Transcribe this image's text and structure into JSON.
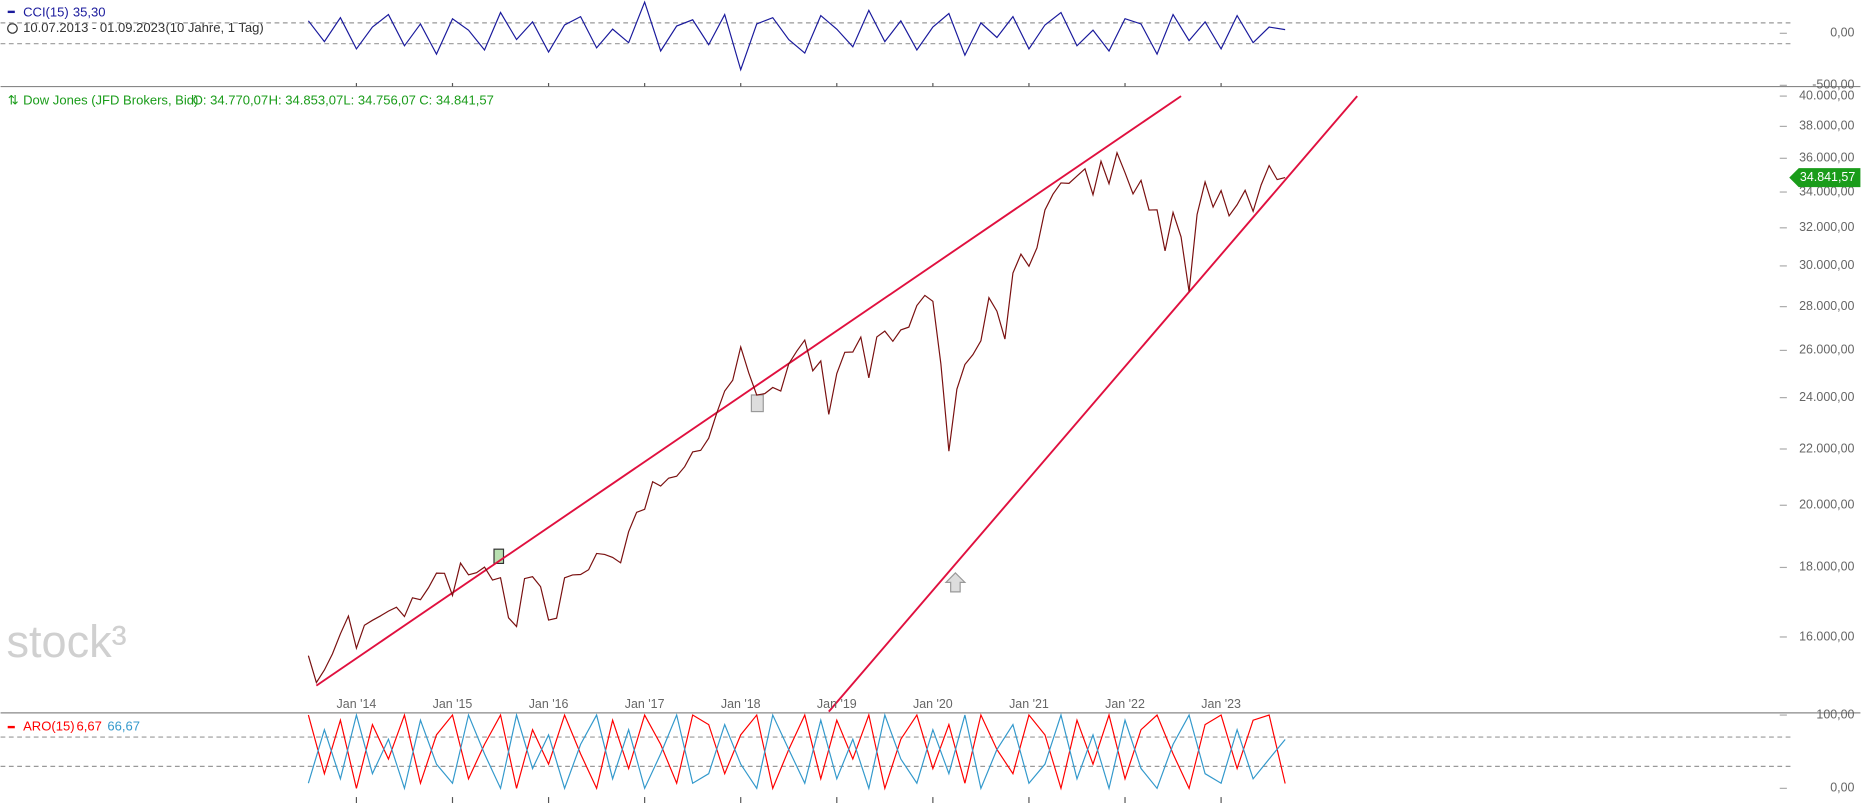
{
  "header": {
    "range": "10.07.2013 - 01.09.2023",
    "period": "(10 Jahre, 1 Tag)"
  },
  "watermark": "stock³",
  "chart_data": [
    {
      "type": "line",
      "title": "CCI(15)",
      "x": [
        "2013-07",
        "2013-09",
        "2013-11",
        "2014-01",
        "2014-03",
        "2014-05",
        "2014-07",
        "2014-09",
        "2014-11",
        "2015-01",
        "2015-03",
        "2015-05",
        "2015-07",
        "2015-09",
        "2015-11",
        "2016-01",
        "2016-03",
        "2016-05",
        "2016-07",
        "2016-09",
        "2016-11",
        "2017-01",
        "2017-03",
        "2017-05",
        "2017-07",
        "2017-09",
        "2017-11",
        "2018-01",
        "2018-03",
        "2018-05",
        "2018-07",
        "2018-09",
        "2018-11",
        "2019-01",
        "2019-03",
        "2019-05",
        "2019-07",
        "2019-09",
        "2019-11",
        "2020-01",
        "2020-03",
        "2020-05",
        "2020-07",
        "2020-09",
        "2020-11",
        "2021-01",
        "2021-03",
        "2021-05",
        "2021-07",
        "2021-09",
        "2021-11",
        "2022-01",
        "2022-03",
        "2022-05",
        "2022-07",
        "2022-09",
        "2022-11",
        "2023-01",
        "2023-03",
        "2023-05",
        "2023-07",
        "2023-09"
      ],
      "series": [
        {
          "color": "#1a1a9c",
          "last_label": "35,30",
          "values": [
            120,
            -80,
            150,
            -150,
            60,
            180,
            -120,
            90,
            -200,
            140,
            30,
            -160,
            200,
            -60,
            110,
            -180,
            80,
            160,
            -140,
            40,
            -90,
            300,
            -170,
            70,
            130,
            -110,
            180,
            -350,
            90,
            150,
            -60,
            -190,
            170,
            40,
            -130,
            220,
            -80,
            120,
            -160,
            60,
            190,
            -210,
            100,
            -40,
            160,
            -150,
            80,
            200,
            -120,
            30,
            -170,
            140,
            90,
            -200,
            180,
            -70,
            110,
            -150,
            170,
            -90,
            60,
            35.3
          ]
        }
      ],
      "ylim": [
        -512,
        320
      ],
      "yticks": [
        {
          "value": 0,
          "label": "0,00"
        },
        {
          "value": -500,
          "label": "-500,00"
        }
      ],
      "levels": [
        100,
        -100
      ]
    },
    {
      "type": "line",
      "title": "Dow Jones (JFD Brokers, Bid)",
      "ohlc_labels": [
        "O: 34.770,07",
        "H: 34.853,07",
        "L: 34.756,07",
        "C: 34.841,57"
      ],
      "log_scale": true,
      "x": [
        "2013-07",
        "2013-08",
        "2013-09",
        "2013-10",
        "2013-11",
        "2013-12",
        "2014-01",
        "2014-02",
        "2014-03",
        "2014-04",
        "2014-05",
        "2014-06",
        "2014-07",
        "2014-08",
        "2014-09",
        "2014-10",
        "2014-11",
        "2014-12",
        "2015-01",
        "2015-02",
        "2015-03",
        "2015-04",
        "2015-05",
        "2015-06",
        "2015-07",
        "2015-08",
        "2015-09",
        "2015-10",
        "2015-11",
        "2015-12",
        "2016-01",
        "2016-02",
        "2016-03",
        "2016-04",
        "2016-05",
        "2016-06",
        "2016-07",
        "2016-08",
        "2016-09",
        "2016-10",
        "2016-11",
        "2016-12",
        "2017-01",
        "2017-02",
        "2017-03",
        "2017-04",
        "2017-05",
        "2017-06",
        "2017-07",
        "2017-08",
        "2017-09",
        "2017-10",
        "2017-11",
        "2017-12",
        "2018-01",
        "2018-02",
        "2018-03",
        "2018-04",
        "2018-05",
        "2018-06",
        "2018-07",
        "2018-08",
        "2018-09",
        "2018-10",
        "2018-11",
        "2018-12",
        "2019-01",
        "2019-02",
        "2019-03",
        "2019-04",
        "2019-05",
        "2019-06",
        "2019-07",
        "2019-08",
        "2019-09",
        "2019-10",
        "2019-11",
        "2019-12",
        "2020-01",
        "2020-02",
        "2020-03",
        "2020-04",
        "2020-05",
        "2020-06",
        "2020-07",
        "2020-08",
        "2020-09",
        "2020-10",
        "2020-11",
        "2020-12",
        "2021-01",
        "2021-02",
        "2021-03",
        "2021-04",
        "2021-05",
        "2021-06",
        "2021-07",
        "2021-08",
        "2021-09",
        "2021-10",
        "2021-11",
        "2021-12",
        "2022-01",
        "2022-02",
        "2022-03",
        "2022-04",
        "2022-05",
        "2022-06",
        "2022-07",
        "2022-08",
        "2022-09",
        "2022-10",
        "2022-11",
        "2022-12",
        "2023-01",
        "2023-02",
        "2023-03",
        "2023-04",
        "2023-05",
        "2023-06",
        "2023-07",
        "2023-08",
        "2023-09"
      ],
      "color": "#7a1010",
      "values": [
        15500,
        14810,
        15130,
        15545,
        16086,
        16577,
        15699,
        16322,
        16458,
        16581,
        16717,
        16827,
        16563,
        17098,
        17043,
        17391,
        17828,
        17823,
        17165,
        18133,
        17776,
        17841,
        18011,
        17620,
        17690,
        16528,
        16285,
        17664,
        17720,
        17425,
        16466,
        16517,
        17685,
        17774,
        17787,
        17930,
        18432,
        18401,
        18308,
        18142,
        19124,
        19763,
        19864,
        20812,
        20663,
        20941,
        21009,
        21350,
        21891,
        21948,
        22405,
        23377,
        24272,
        24719,
        26149,
        25029,
        24103,
        24163,
        24416,
        24271,
        25415,
        25965,
        26458,
        25116,
        25538,
        23327,
        24999,
        25916,
        25929,
        26593,
        24815,
        26600,
        26864,
        26403,
        26917,
        27046,
        28051,
        28538,
        28256,
        25409,
        21917,
        24346,
        25383,
        25813,
        26428,
        28430,
        27782,
        26502,
        29639,
        30606,
        29983,
        30932,
        32982,
        33875,
        34529,
        34503,
        34935,
        35361,
        33844,
        35820,
        34484,
        36338,
        35132,
        33893,
        34678,
        32977,
        32990,
        30775,
        32845,
        31510,
        28726,
        32733,
        34590,
        33147,
        34086,
        32657,
        33274,
        34098,
        32908,
        34408,
        35560,
        34722,
        34842
      ],
      "ylim": [
        14070,
        40650
      ],
      "yticks": [
        {
          "value": 16000,
          "label": "16.000,00"
        },
        {
          "value": 18000,
          "label": "18.000,00"
        },
        {
          "value": 20000,
          "label": "20.000,00"
        },
        {
          "value": 22000,
          "label": "22.000,00"
        },
        {
          "value": 24000,
          "label": "24.000,00"
        },
        {
          "value": 26000,
          "label": "26.000,00"
        },
        {
          "value": 28000,
          "label": "28.000,00"
        },
        {
          "value": 30000,
          "label": "30.000,00"
        },
        {
          "value": 32000,
          "label": "32.000,00"
        },
        {
          "value": 34000,
          "label": "34.000,00"
        },
        {
          "value": 36000,
          "label": "36.000,00"
        },
        {
          "value": 38000,
          "label": "38.000,00"
        },
        {
          "value": 40000,
          "label": "40.000,00"
        }
      ],
      "xticks": [
        {
          "value": "2014-01",
          "label": "Jan '14"
        },
        {
          "value": "2015-01",
          "label": "Jan '15"
        },
        {
          "value": "2016-01",
          "label": "Jan '16"
        },
        {
          "value": "2017-01",
          "label": "Jan '17"
        },
        {
          "value": "2018-01",
          "label": "Jan '18"
        },
        {
          "value": "2019-01",
          "label": "Jan '19"
        },
        {
          "value": "2020-01",
          "label": "Jan '20"
        },
        {
          "value": "2021-01",
          "label": "Jan '21"
        },
        {
          "value": "2022-01",
          "label": "Jan '22"
        },
        {
          "value": "2023-01",
          "label": "Jan '23"
        }
      ],
      "trendlines": [
        {
          "color": "#e0103f",
          "x": [
            "2013-08",
            "2022-08"
          ],
          "values": [
            14735,
            40000
          ]
        },
        {
          "color": "#e0103f",
          "x": [
            "2018-12",
            "2024-06"
          ],
          "values": [
            14100,
            40000
          ]
        }
      ],
      "price_tag": {
        "value": 34841.57,
        "label": "34.841,57"
      }
    },
    {
      "type": "line",
      "title": "ARO(15)",
      "x": [
        "2013-07",
        "2013-09",
        "2013-11",
        "2014-01",
        "2014-03",
        "2014-05",
        "2014-07",
        "2014-09",
        "2014-11",
        "2015-01",
        "2015-03",
        "2015-05",
        "2015-07",
        "2015-09",
        "2015-11",
        "2016-01",
        "2016-03",
        "2016-05",
        "2016-07",
        "2016-09",
        "2016-11",
        "2017-01",
        "2017-03",
        "2017-05",
        "2017-07",
        "2017-09",
        "2017-11",
        "2018-01",
        "2018-03",
        "2018-05",
        "2018-07",
        "2018-09",
        "2018-11",
        "2019-01",
        "2019-03",
        "2019-05",
        "2019-07",
        "2019-09",
        "2019-11",
        "2020-01",
        "2020-03",
        "2020-05",
        "2020-07",
        "2020-09",
        "2020-11",
        "2021-01",
        "2021-03",
        "2021-05",
        "2021-07",
        "2021-09",
        "2021-11",
        "2022-01",
        "2022-03",
        "2022-05",
        "2022-07",
        "2022-09",
        "2022-11",
        "2023-01",
        "2023-03",
        "2023-05",
        "2023-07",
        "2023-09"
      ],
      "series": [
        {
          "color": "#ff0000",
          "last_label": "6,67",
          "values": [
            100,
            20,
            93,
            0,
            87,
            40,
            100,
            7,
            73,
            100,
            13,
            60,
            100,
            0,
            80,
            33,
            100,
            47,
            0,
            93,
            27,
            100,
            60,
            7,
            100,
            87,
            20,
            73,
            100,
            0,
            53,
            100,
            13,
            93,
            40,
            100,
            0,
            67,
            100,
            27,
            87,
            7,
            100,
            53,
            20,
            100,
            73,
            0,
            93,
            33,
            100,
            13,
            80,
            100,
            47,
            0,
            87,
            100,
            27,
            93,
            100,
            6.67
          ]
        },
        {
          "color": "#3399cc",
          "last_label": "66,67",
          "values": [
            7,
            80,
            13,
            100,
            20,
            67,
            0,
            93,
            33,
            7,
            100,
            47,
            0,
            100,
            27,
            73,
            0,
            60,
            100,
            13,
            80,
            0,
            47,
            100,
            7,
            20,
            87,
            33,
            0,
            100,
            53,
            7,
            93,
            13,
            67,
            0,
            100,
            40,
            7,
            80,
            20,
            100,
            0,
            53,
            87,
            7,
            33,
            100,
            13,
            73,
            0,
            93,
            27,
            0,
            60,
            100,
            20,
            7,
            80,
            13,
            40,
            66.67
          ]
        }
      ],
      "ylim": [
        -20,
        103
      ],
      "yticks": [
        {
          "value": 100,
          "label": "100,00"
        },
        {
          "value": 0,
          "label": "0,00"
        }
      ],
      "levels": [
        70,
        30
      ]
    }
  ]
}
